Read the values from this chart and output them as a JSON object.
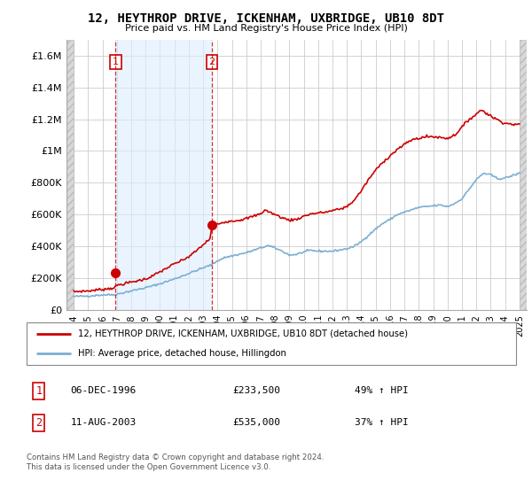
{
  "title": "12, HEYTHROP DRIVE, ICKENHAM, UXBRIDGE, UB10 8DT",
  "subtitle": "Price paid vs. HM Land Registry's House Price Index (HPI)",
  "legend_line1": "12, HEYTHROP DRIVE, ICKENHAM, UXBRIDGE, UB10 8DT (detached house)",
  "legend_line2": "HPI: Average price, detached house, Hillingdon",
  "purchase1_date": "06-DEC-1996",
  "purchase1_price": "£233,500",
  "purchase1_hpi": "49% ↑ HPI",
  "purchase2_date": "11-AUG-2003",
  "purchase2_price": "£535,000",
  "purchase2_hpi": "37% ↑ HPI",
  "footer": "Contains HM Land Registry data © Crown copyright and database right 2024.\nThis data is licensed under the Open Government Licence v3.0.",
  "hpi_color": "#7bafd4",
  "price_color": "#cc0000",
  "vline_color": "#cc0000",
  "shade_color": "#ddeeff",
  "hatch_color": "#cccccc",
  "ylim_max": 1700000,
  "yticks": [
    0,
    200000,
    400000,
    600000,
    800000,
    1000000,
    1200000,
    1400000,
    1600000
  ],
  "ytick_labels": [
    "£0",
    "£200K",
    "£400K",
    "£600K",
    "£800K",
    "£1M",
    "£1.2M",
    "£1.4M",
    "£1.6M"
  ],
  "xtick_years": [
    1994,
    1995,
    1996,
    1997,
    1998,
    1999,
    2000,
    2001,
    2002,
    2003,
    2004,
    2005,
    2006,
    2007,
    2008,
    2009,
    2010,
    2011,
    2012,
    2013,
    2014,
    2015,
    2016,
    2017,
    2018,
    2019,
    2020,
    2021,
    2022,
    2023,
    2024,
    2025
  ],
  "purchase1_x": 1996.92,
  "purchase1_y": 233500,
  "purchase2_x": 2003.61,
  "purchase2_y": 535000,
  "xmin": 1993.5,
  "xmax": 2025.5,
  "hatch_end": 1994.0,
  "shade_start": 1996.92,
  "shade_end": 2003.61,
  "bg_color": "#ffffff"
}
